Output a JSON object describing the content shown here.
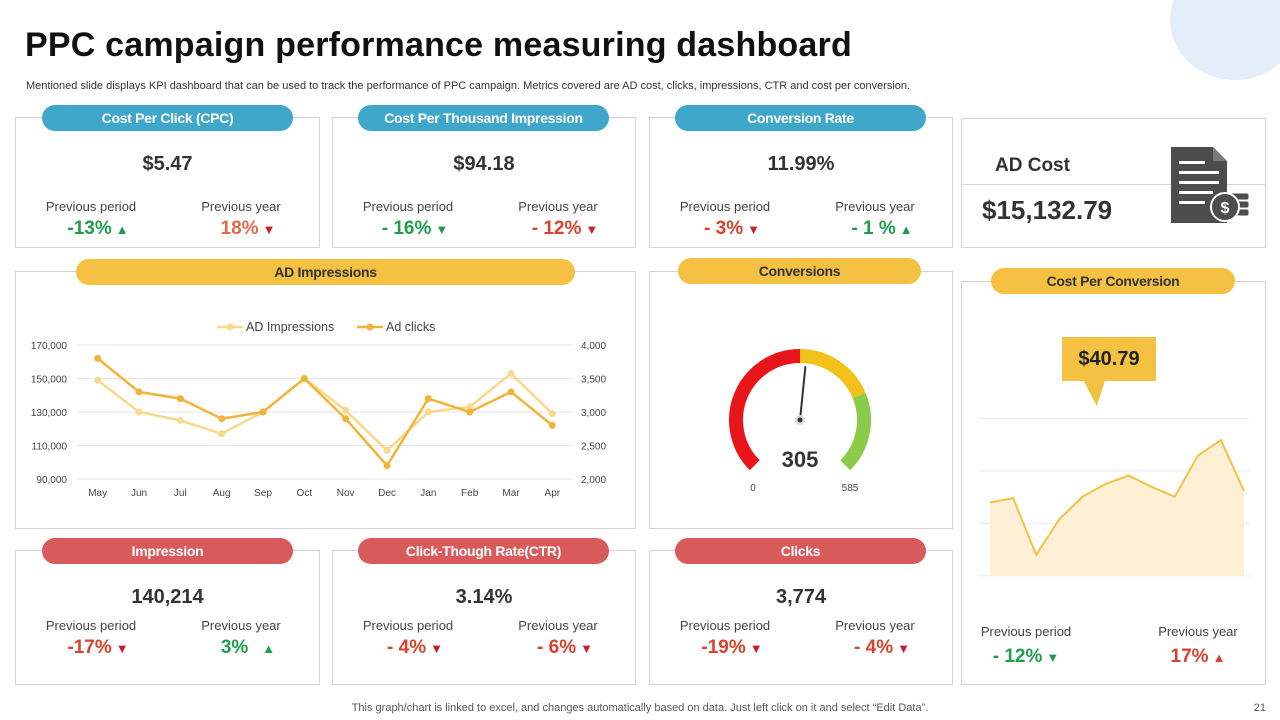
{
  "page": {
    "title": "PPC campaign performance measuring dashboard",
    "subtitle": "Mentioned slide displays KPI dashboard that can be used to track the performance of PPC campaign. Metrics covered are AD cost, clicks, impressions, CTR and cost per conversion.",
    "footer": "This graph/chart is linked to excel,  and changes automatically based on data. Just left click on it and select “Edit Data”.",
    "page_number": "21"
  },
  "kpis": {
    "cpc": {
      "label": "Cost Per Click (CPC)",
      "value": "$5.47",
      "prev_label": "Previous period",
      "prev_val": "-13%",
      "year_label": "Previous year",
      "year_val": "18%"
    },
    "cpm": {
      "label": "Cost Per Thousand Impression",
      "value": "$94.18",
      "prev_label": "Previous period",
      "prev_val": "- 16%",
      "year_label": "Previous year",
      "year_val": "- 12%"
    },
    "conv_rate": {
      "label": "Conversion Rate",
      "value": "11.99%",
      "prev_label": "Previous period",
      "prev_val": "- 3%",
      "year_label": "Previous year",
      "year_val": "- 1 %"
    },
    "impression": {
      "label": "Impression",
      "value": "140,214",
      "prev_label": "Previous period",
      "prev_val": "-17%",
      "year_label": "Previous year",
      "year_val": "3%"
    },
    "ctr": {
      "label": "Click-Though Rate(CTR)",
      "value": "3.14%",
      "prev_label": "Previous period",
      "prev_val": "- 4%",
      "year_label": "Previous year",
      "year_val": "- 6%"
    },
    "clicks": {
      "label": "Clicks",
      "value": "3,774",
      "prev_label": "Previous period",
      "prev_val": "-19%",
      "year_label": "Previous year",
      "year_val": "- 4%"
    }
  },
  "ad_cost": {
    "label": "AD Cost",
    "value": "$15,132.79",
    "icon": "invoice-dollar-icon"
  },
  "cost_per_conversion": {
    "label": "Cost Per Conversion",
    "callout": "$40.79",
    "prev_label": "Previous period",
    "prev_val": "- 12%",
    "year_label": "Previous year",
    "year_val": "17%"
  },
  "icons": {
    "up": "▲",
    "down": "▼"
  },
  "colors": {
    "blue": "#3fa7c9",
    "yellow": "#f5c143",
    "red": "#d95a5a",
    "green": "#1e9e4a",
    "gauge_red": "#e8161b",
    "gauge_yellow": "#f2c21b",
    "gauge_green": "#8ccb4a"
  },
  "chart_data": [
    {
      "type": "line",
      "title": "AD Impressions",
      "categories": [
        "May",
        "Jun",
        "Jul",
        "Aug",
        "Sep",
        "Oct",
        "Nov",
        "Dec",
        "Jan",
        "Feb",
        "Mar",
        "Apr"
      ],
      "series": [
        {
          "name": "AD Impressions",
          "axis": "left",
          "values": [
            149000,
            130000,
            125000,
            117000,
            130000,
            150000,
            131000,
            107000,
            130000,
            133000,
            153000,
            129000
          ]
        },
        {
          "name": "Ad clicks",
          "axis": "right",
          "values": [
            3800,
            3300,
            3200,
            2900,
            3000,
            3500,
            2900,
            2200,
            3200,
            3000,
            3300,
            2800
          ]
        }
      ],
      "y_left": {
        "min": 90000,
        "max": 170000,
        "ticks": [
          "90,000",
          "110,000",
          "130,000",
          "150,000",
          "170,000"
        ]
      },
      "y_right": {
        "min": 2000,
        "max": 4000,
        "ticks": [
          "2,000",
          "2,500",
          "3,000",
          "3,500",
          "4,000"
        ]
      },
      "legend": "top-center"
    },
    {
      "type": "gauge",
      "title": "Conversions",
      "value": 305,
      "display_value": "305",
      "min": 0,
      "max": 585,
      "min_label": "0",
      "max_label": "585",
      "bands": [
        {
          "from": 0,
          "to": 292.5,
          "color": "#e8161b"
        },
        {
          "from": 292.5,
          "to": 438.75,
          "color": "#f2c21b"
        },
        {
          "from": 438.75,
          "to": 585,
          "color": "#8ccb4a"
        }
      ]
    },
    {
      "type": "area",
      "title": "Cost Per Conversion",
      "values": [
        52,
        55,
        15,
        40,
        56,
        65,
        71,
        63,
        56,
        85,
        96,
        60
      ],
      "ylim": [
        0,
        130
      ],
      "callout": "$40.79"
    }
  ]
}
